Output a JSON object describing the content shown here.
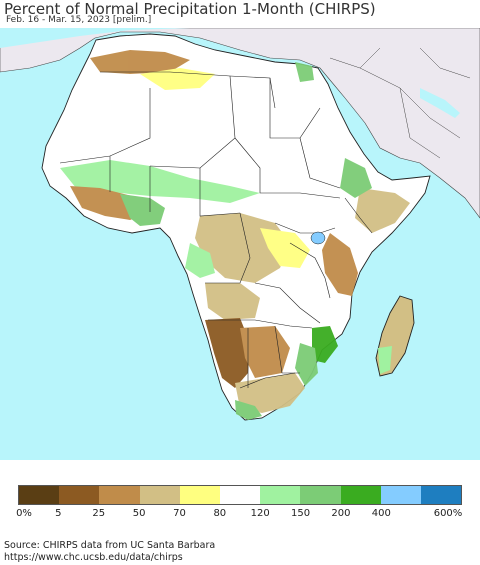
{
  "header": {
    "title": "Percent of Normal Precipitation 1-Month (CHIRPS)",
    "subtitle": "Feb. 16 - Mar. 15, 2023 [prelim.]"
  },
  "map": {
    "colors": {
      "ocean": "#b8f5fb",
      "land_outside": "#ece8ef",
      "no_data_land": "#ffffff",
      "border": "#222222"
    }
  },
  "legend": {
    "labels": [
      "0%",
      "5",
      "25",
      "50",
      "70",
      "80",
      "120",
      "150",
      "200",
      "400",
      "600%"
    ],
    "colors": [
      "#5a3e14",
      "#8c5a22",
      "#c08c4a",
      "#d2bf85",
      "#ffff80",
      "#ffffff",
      "#a0f2a0",
      "#7ccc76",
      "#3aac20",
      "#84ccff",
      "#1e7ec0"
    ]
  },
  "footer": {
    "source": "Source: CHIRPS data from UC Santa Barbara",
    "url": "https://www.chc.ucsb.edu/data/chirps"
  }
}
